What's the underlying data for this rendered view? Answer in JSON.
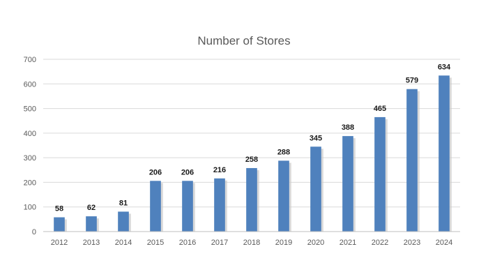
{
  "chart_data": {
    "type": "bar",
    "title": "Number of Stores",
    "xlabel": "",
    "ylabel": "",
    "categories": [
      "2012",
      "2013",
      "2014",
      "2015",
      "2016",
      "2017",
      "2018",
      "2019",
      "2020",
      "2021",
      "2022",
      "2023",
      "2024"
    ],
    "values": [
      58,
      62,
      81,
      206,
      206,
      216,
      258,
      288,
      345,
      388,
      465,
      579,
      634
    ],
    "ylim": [
      0,
      700
    ],
    "yticks": [
      0,
      100,
      200,
      300,
      400,
      500,
      600,
      700
    ],
    "grid": true,
    "legend": "none",
    "bar_color": "#4f81bd",
    "bar_shadow_color": "#c9c9c9",
    "data_labels": true
  }
}
